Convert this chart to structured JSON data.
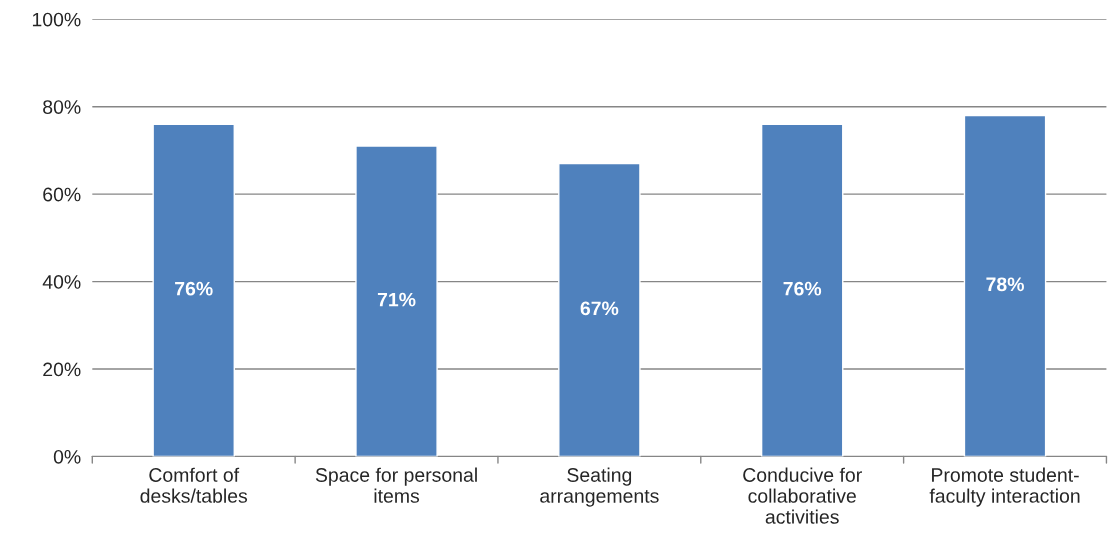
{
  "chart_data": {
    "type": "bar",
    "categories": [
      "Comfort of\ndesks/tables",
      "Space for personal\nitems",
      "Seating\narrangements",
      "Conducive for\ncollaborative\nactivities",
      "Promote student-\nfaculty interaction"
    ],
    "values": [
      76,
      71,
      67,
      76,
      78
    ],
    "value_labels": [
      "76%",
      "71%",
      "67%",
      "76%",
      "78%"
    ],
    "color": "#4f81bd",
    "ylim": [
      0,
      100
    ],
    "yticks": [
      {
        "value": 0,
        "label": "0%"
      },
      {
        "value": 20,
        "label": "20%"
      },
      {
        "value": 40,
        "label": "40%"
      },
      {
        "value": 60,
        "label": "60%"
      },
      {
        "value": 80,
        "label": "80%"
      },
      {
        "value": 100,
        "label": "100%"
      }
    ],
    "grid": "y",
    "legend": false
  }
}
